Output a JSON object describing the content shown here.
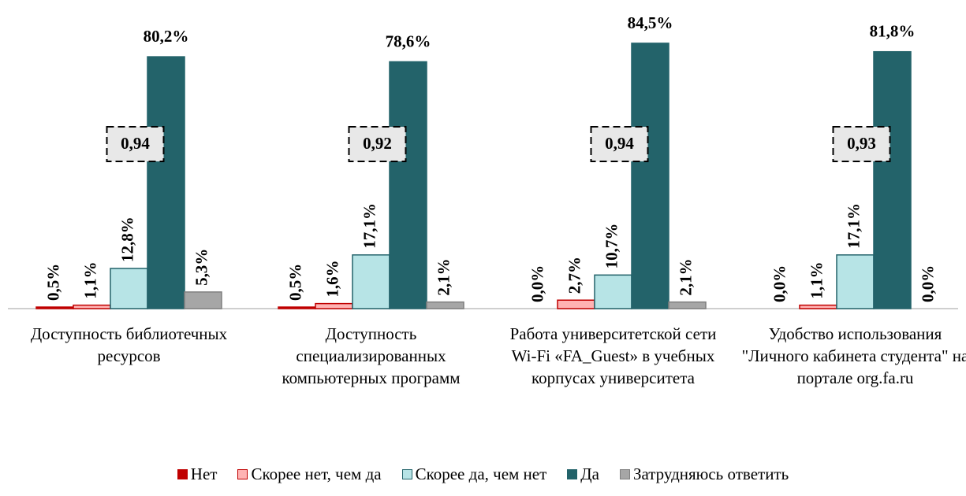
{
  "chart_data": {
    "type": "bar",
    "categories": [
      "Доступность библиотечных ресурсов",
      "Доступность специализированных компьютерных программ",
      "Работа университетской сети Wi-Fi «FA_Guest» в учебных корпусах университета",
      "Удобство использования \"Личного кабинета студента\" на портале org.fa.ru"
    ],
    "series": [
      {
        "name": "Нет",
        "color": "#c00000",
        "stroke": "#c00000",
        "values": [
          0.5,
          0.5,
          0.0,
          0.0
        ],
        "value_labels": [
          "0,5%",
          "0,5%",
          "0,0%",
          "0,0%"
        ]
      },
      {
        "name": "Скорее нет, чем да",
        "color": "#ffb3b3",
        "stroke": "#c00000",
        "values": [
          1.1,
          1.6,
          2.7,
          1.1
        ],
        "value_labels": [
          "1,1%",
          "1,6%",
          "2,7%",
          "1,1%"
        ]
      },
      {
        "name": "Скорее да, чем нет",
        "color": "#b7e4e6",
        "stroke": "#23636a",
        "values": [
          12.8,
          17.1,
          10.7,
          17.1
        ],
        "value_labels": [
          "12,8%",
          "17,1%",
          "10,7%",
          "17,1%"
        ]
      },
      {
        "name": "Да",
        "color": "#23636a",
        "stroke": "#23636a",
        "values": [
          80.2,
          78.6,
          84.5,
          81.8
        ],
        "value_labels": [
          "80,2%",
          "78,6%",
          "84,5%",
          "81,8%"
        ]
      },
      {
        "name": "Затрудняюсь ответить",
        "color": "#a6a6a6",
        "stroke": "#7f7f7f",
        "values": [
          5.3,
          2.1,
          2.1,
          0.0
        ],
        "value_labels": [
          "5,3%",
          "2,1%",
          "2,1%",
          "0,0%"
        ]
      }
    ],
    "annotations": [
      "0,94",
      "0,92",
      "0,94",
      "0,93"
    ],
    "ylim": [
      0,
      90
    ]
  }
}
